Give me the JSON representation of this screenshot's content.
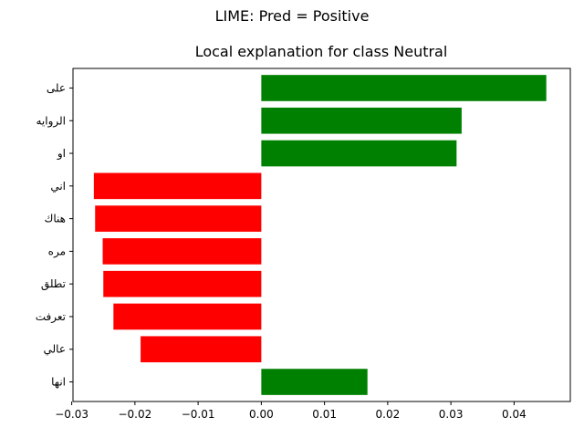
{
  "figure": {
    "suptitle": "LIME: Pred = Positive"
  },
  "chart_data": {
    "type": "bar",
    "orientation": "horizontal",
    "title": "Local explanation for class Neutral",
    "xlabel": "",
    "ylabel": "",
    "categories": [
      "على",
      "الروايه",
      "او",
      "اني",
      "هناك",
      "مره",
      "تطلق",
      "تعرفت",
      "عالي",
      "انها"
    ],
    "values": [
      0.0451,
      0.0317,
      0.0309,
      -0.0265,
      -0.0263,
      -0.0251,
      -0.025,
      -0.0234,
      -0.0191,
      0.0168
    ],
    "xlim": [
      -0.0298,
      0.0489
    ],
    "xticks": [
      -0.03,
      -0.02,
      -0.01,
      0.0,
      0.01,
      0.02,
      0.03,
      0.04
    ],
    "xtick_labels": [
      "−0.03",
      "−0.02",
      "−0.01",
      "0.00",
      "0.01",
      "0.02",
      "0.03",
      "0.04"
    ],
    "positive_color": "#008000",
    "negative_color": "#ff0000",
    "grid": false
  }
}
